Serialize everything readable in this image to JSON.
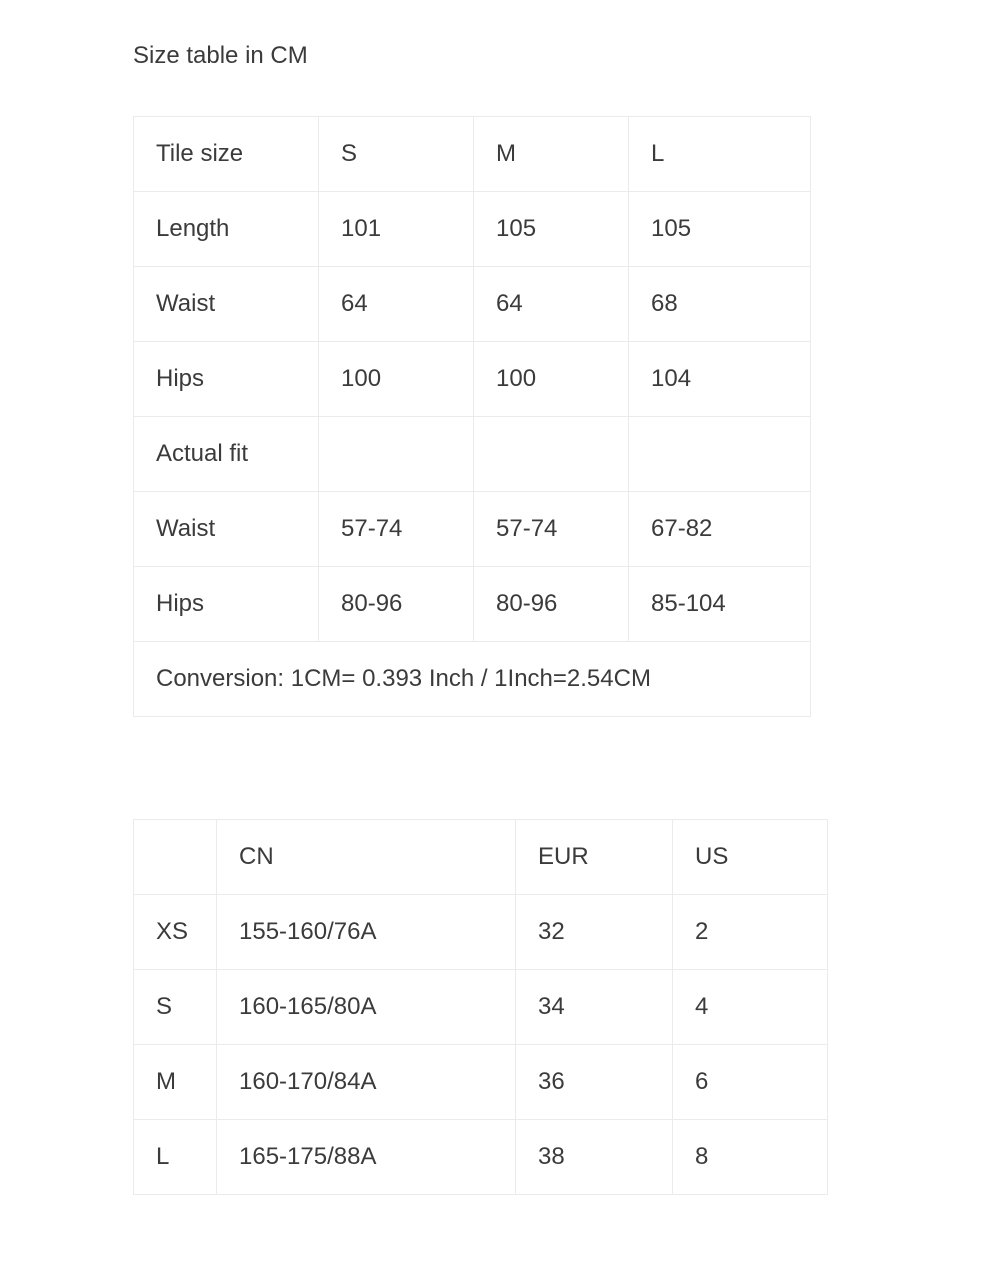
{
  "page": {
    "heading": "Size table in CM"
  },
  "size_table_cm": {
    "header": [
      "Tile size",
      "S",
      "M",
      "L"
    ],
    "rows": [
      [
        "Length",
        "101",
        "105",
        "105"
      ],
      [
        "Waist",
        "64",
        "64",
        "68"
      ],
      [
        "Hips",
        "100",
        "100",
        "104"
      ],
      [
        "Actual fit",
        "",
        "",
        ""
      ],
      [
        "Waist",
        "57-74",
        "57-74",
        "67-82"
      ],
      [
        "Hips",
        "80-96",
        "80-96",
        "85-104"
      ]
    ],
    "footer": "Conversion: 1CM= 0.393 Inch / 1Inch=2.54CM"
  },
  "conversion_table": {
    "header": [
      "",
      "CN",
      "EUR",
      "US"
    ],
    "rows": [
      [
        "XS",
        "155-160/76A",
        "32",
        "2"
      ],
      [
        "S",
        "160-165/80A",
        "34",
        "4"
      ],
      [
        "M",
        "160-170/84A",
        "36",
        "6"
      ],
      [
        "L",
        "165-175/88A",
        "38",
        "8"
      ]
    ]
  },
  "colors": {
    "text": "#3b3b3b",
    "border": "#ebebeb",
    "background": "#ffffff"
  }
}
